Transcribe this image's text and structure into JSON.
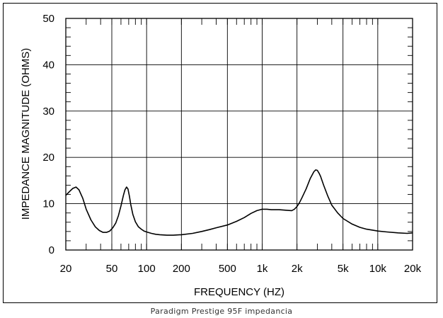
{
  "caption": "Paradigm Prestige 95F impedancia",
  "chart_data": {
    "type": "line",
    "xlabel": "FREQUENCY  (HZ)",
    "ylabel": "IMPEDANCE MAGNITUDE  (OHMS)",
    "xscale": "log",
    "xlim": [
      20,
      20000
    ],
    "ylim": [
      0,
      50
    ],
    "grid": true,
    "x_ticks": [
      {
        "value": 20,
        "label": "20"
      },
      {
        "value": 50,
        "label": "50"
      },
      {
        "value": 100,
        "label": "100"
      },
      {
        "value": 200,
        "label": "200"
      },
      {
        "value": 500,
        "label": "500"
      },
      {
        "value": 1000,
        "label": "1k"
      },
      {
        "value": 2000,
        "label": "2k"
      },
      {
        "value": 5000,
        "label": "5k"
      },
      {
        "value": 10000,
        "label": "10k"
      },
      {
        "value": 20000,
        "label": "20k"
      }
    ],
    "y_ticks": [
      {
        "value": 0,
        "label": "0"
      },
      {
        "value": 10,
        "label": "10"
      },
      {
        "value": 20,
        "label": "20"
      },
      {
        "value": 30,
        "label": "30"
      },
      {
        "value": 40,
        "label": "40"
      },
      {
        "value": 50,
        "label": "50"
      }
    ],
    "series": [
      {
        "x": [
          20,
          21.5,
          23,
          24.5,
          26,
          28,
          30,
          33,
          36,
          39,
          42,
          45,
          48,
          51,
          54,
          57,
          60,
          63,
          65,
          67,
          69,
          71,
          73,
          76,
          80,
          85,
          90,
          95,
          100,
          110,
          120,
          130,
          150,
          170,
          200,
          250,
          300,
          350,
          400,
          500,
          600,
          700,
          800,
          900,
          1000,
          1100,
          1200,
          1400,
          1600,
          1800,
          1900,
          2000,
          2100,
          2200,
          2400,
          2600,
          2800,
          2900,
          3000,
          3100,
          3200,
          3400,
          3700,
          4000,
          4500,
          5000,
          6000,
          7000,
          8000,
          9000,
          10000,
          12000,
          15000,
          18000,
          20000
        ],
        "y": [
          11.8,
          12.6,
          13.3,
          13.6,
          13.0,
          11.2,
          8.8,
          6.5,
          5.0,
          4.2,
          3.8,
          3.8,
          4.1,
          4.8,
          5.8,
          7.4,
          9.5,
          11.8,
          13.0,
          13.6,
          13.2,
          11.6,
          9.8,
          7.7,
          6.1,
          5.0,
          4.5,
          4.1,
          3.9,
          3.6,
          3.4,
          3.3,
          3.2,
          3.2,
          3.3,
          3.6,
          4.0,
          4.4,
          4.8,
          5.4,
          6.2,
          7.0,
          7.9,
          8.5,
          8.8,
          8.8,
          8.7,
          8.7,
          8.6,
          8.5,
          8.8,
          9.4,
          10.2,
          11.2,
          13.2,
          15.4,
          16.9,
          17.3,
          17.2,
          16.6,
          15.9,
          14.0,
          11.6,
          9.7,
          8.0,
          6.8,
          5.6,
          4.9,
          4.5,
          4.3,
          4.1,
          3.9,
          3.7,
          3.6,
          3.7
        ]
      }
    ]
  }
}
